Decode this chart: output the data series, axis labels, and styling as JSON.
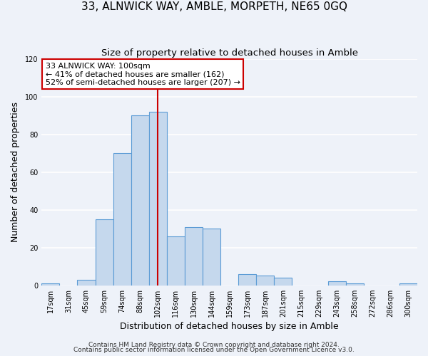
{
  "title": "33, ALNWICK WAY, AMBLE, MORPETH, NE65 0GQ",
  "subtitle": "Size of property relative to detached houses in Amble",
  "xlabel": "Distribution of detached houses by size in Amble",
  "ylabel": "Number of detached properties",
  "x_labels": [
    "17sqm",
    "31sqm",
    "45sqm",
    "59sqm",
    "74sqm",
    "88sqm",
    "102sqm",
    "116sqm",
    "130sqm",
    "144sqm",
    "159sqm",
    "173sqm",
    "187sqm",
    "201sqm",
    "215sqm",
    "229sqm",
    "243sqm",
    "258sqm",
    "272sqm",
    "286sqm",
    "300sqm"
  ],
  "bar_values": [
    1,
    0,
    3,
    35,
    70,
    90,
    92,
    26,
    31,
    30,
    0,
    6,
    5,
    4,
    0,
    0,
    2,
    1,
    0,
    0,
    1
  ],
  "bar_color": "#c5d8ed",
  "bar_edge_color": "#5b9bd5",
  "vline_x_index": 6,
  "vline_color": "#cc0000",
  "annotation_line1": "33 ALNWICK WAY: 100sqm",
  "annotation_line2": "← 41% of detached houses are smaller (162)",
  "annotation_line3": "52% of semi-detached houses are larger (207) →",
  "annotation_box_facecolor": "#ffffff",
  "annotation_box_edgecolor": "#cc0000",
  "ylim": [
    0,
    120
  ],
  "yticks": [
    0,
    20,
    40,
    60,
    80,
    100,
    120
  ],
  "footer1": "Contains HM Land Registry data © Crown copyright and database right 2024.",
  "footer2": "Contains public sector information licensed under the Open Government Licence v3.0.",
  "background_color": "#eef2f9",
  "grid_color": "#ffffff",
  "title_fontsize": 11,
  "subtitle_fontsize": 9.5,
  "axis_label_fontsize": 9,
  "tick_fontsize": 7,
  "annotation_fontsize": 8,
  "footer_fontsize": 6.5
}
